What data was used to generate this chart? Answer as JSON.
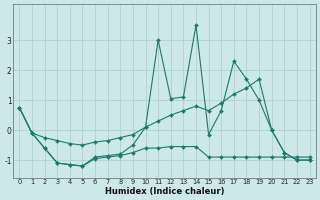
{
  "xlabel": "Humidex (Indice chaleur)",
  "bg_color": "#cce8e8",
  "grid_color": "#aacccc",
  "line_color": "#1a7a6e",
  "xlim": [
    -0.5,
    23.5
  ],
  "ylim": [
    -1.6,
    4.2
  ],
  "yticks": [
    -1,
    0,
    1,
    2,
    3
  ],
  "xticks": [
    0,
    1,
    2,
    3,
    4,
    5,
    6,
    7,
    8,
    9,
    10,
    11,
    12,
    13,
    14,
    15,
    16,
    17,
    18,
    19,
    20,
    21,
    22,
    23
  ],
  "series": [
    {
      "x": [
        0,
        1,
        2,
        3,
        4,
        5,
        6,
        7,
        8,
        9,
        10,
        11,
        12,
        13,
        14,
        15,
        16,
        17,
        18,
        19,
        20,
        21,
        22,
        23
      ],
      "y": [
        0.75,
        -0.1,
        -0.6,
        -1.1,
        -1.15,
        -1.2,
        -0.9,
        -0.85,
        -0.8,
        -0.5,
        0.1,
        3.0,
        1.05,
        1.1,
        3.5,
        -0.15,
        0.65,
        2.3,
        1.7,
        1.0,
        0.0,
        -0.75,
        -1.0,
        -1.0
      ]
    },
    {
      "x": [
        0,
        1,
        2,
        3,
        4,
        5,
        6,
        7,
        8,
        9,
        10,
        11,
        12,
        13,
        14,
        15,
        16,
        17,
        18,
        19,
        20,
        21,
        22,
        23
      ],
      "y": [
        0.75,
        -0.1,
        -0.25,
        -0.35,
        -0.45,
        -0.5,
        -0.4,
        -0.35,
        -0.25,
        -0.15,
        0.1,
        0.3,
        0.5,
        0.65,
        0.8,
        0.65,
        0.9,
        1.2,
        1.4,
        1.7,
        0.0,
        -0.75,
        -1.0,
        -1.0
      ]
    },
    {
      "x": [
        0,
        1,
        2,
        3,
        4,
        5,
        6,
        7,
        8,
        9,
        10,
        11,
        12,
        13,
        14,
        15,
        16,
        17,
        18,
        19,
        20,
        21,
        22,
        23
      ],
      "y": [
        0.75,
        -0.1,
        -0.6,
        -1.1,
        -1.15,
        -1.2,
        -0.95,
        -0.9,
        -0.85,
        -0.75,
        -0.6,
        -0.6,
        -0.55,
        -0.55,
        -0.55,
        -0.9,
        -0.9,
        -0.9,
        -0.9,
        -0.9,
        -0.9,
        -0.9,
        -0.9,
        -0.9
      ]
    }
  ]
}
